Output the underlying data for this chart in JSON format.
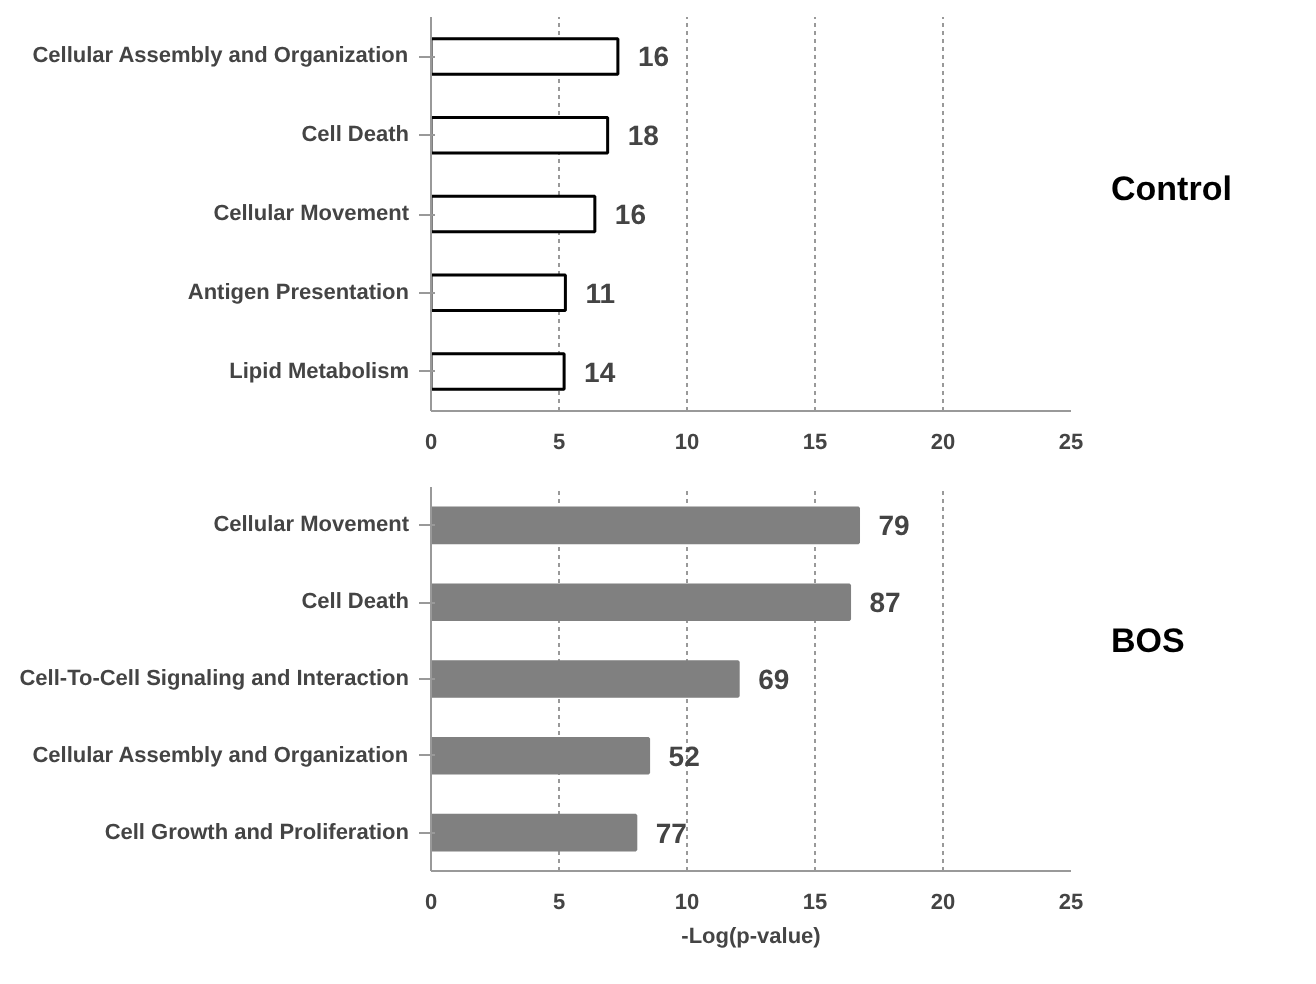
{
  "chart_data": [
    {
      "type": "bar",
      "orientation": "horizontal",
      "categories": [
        "Cellular Assembly and Organization",
        "Cell Death",
        "Cellular Movement",
        "Antigen Presentation",
        "Lipid Metabolism"
      ],
      "values": [
        7.3,
        6.9,
        6.4,
        5.25,
        5.2
      ],
      "color": "#ffffff",
      "xlim": [
        0,
        25
      ],
      "xticks": [
        0,
        5,
        10,
        15,
        20,
        25
      ],
      "grid": "x",
      "annotations": [
        "Control",
        {
          "text": "16",
          "x": 7.3,
          "y": "Cellular Assembly and Organization"
        },
        {
          "text": "18",
          "x": 6.9,
          "y": "Cell Death"
        },
        {
          "text": "16",
          "x": 6.4,
          "y": "Cellular Movement"
        },
        {
          "text": "11",
          "x": 5.25,
          "y": "Antigen Presentation"
        },
        {
          "text": "14",
          "x": 5.2,
          "y": "Lipid Metabolism"
        }
      ]
    },
    {
      "type": "bar",
      "orientation": "horizontal",
      "categories": [
        "Cellular Movement",
        "Cell Death",
        "Cell-To-Cell Signaling and Interaction",
        "Cellular Assembly and Organization",
        "Cell Growth and Proliferation"
      ],
      "values": [
        16.7,
        16.35,
        12.0,
        8.5,
        8.0
      ],
      "color": "#808080",
      "xlim": [
        0,
        25
      ],
      "xticks": [
        0,
        5,
        10,
        15,
        20,
        25
      ],
      "grid": "x",
      "xlabel": "-Log(p-value)",
      "annotations": [
        "BOS",
        {
          "text": "79",
          "x": 16.7,
          "y": "Cellular Movement"
        },
        {
          "text": "87",
          "x": 16.35,
          "y": "Cell Death"
        },
        {
          "text": "69",
          "x": 12.0,
          "y": "Cell-To-Cell Signaling and Interaction"
        },
        {
          "text": "52",
          "x": 8.5,
          "y": "Cellular Assembly and Organization"
        },
        {
          "text": "77",
          "x": 8.0,
          "y": "Cell Growth and Proliferation"
        }
      ]
    }
  ]
}
